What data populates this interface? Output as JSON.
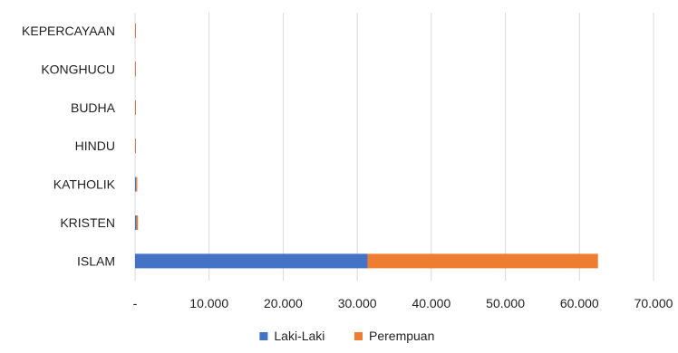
{
  "chart_data": {
    "type": "bar",
    "orientation": "horizontal",
    "stacked": true,
    "title": "",
    "xlabel": "",
    "ylabel": "",
    "categories": [
      "KEPERCAYAAN",
      "KONGHUCU",
      "BUDHA",
      "HINDU",
      "KATHOLIK",
      "KRISTEN",
      "ISLAM"
    ],
    "series": [
      {
        "name": "Laki-Laki",
        "color": "#4472C4",
        "values": [
          10,
          5,
          15,
          10,
          150,
          200,
          31400
        ]
      },
      {
        "name": "Perempuan",
        "color": "#ED7D31",
        "values": [
          10,
          5,
          15,
          10,
          150,
          200,
          31100
        ]
      }
    ],
    "xlim": [
      0,
      70000
    ],
    "xticks": [
      0,
      10000,
      20000,
      30000,
      40000,
      50000,
      60000,
      70000
    ],
    "xtick_labels": [
      "-",
      "10.000",
      "20.000",
      "30.000",
      "40.000",
      "50.000",
      "60.000",
      "70.000"
    ],
    "grid": true,
    "legend_position": "bottom"
  }
}
